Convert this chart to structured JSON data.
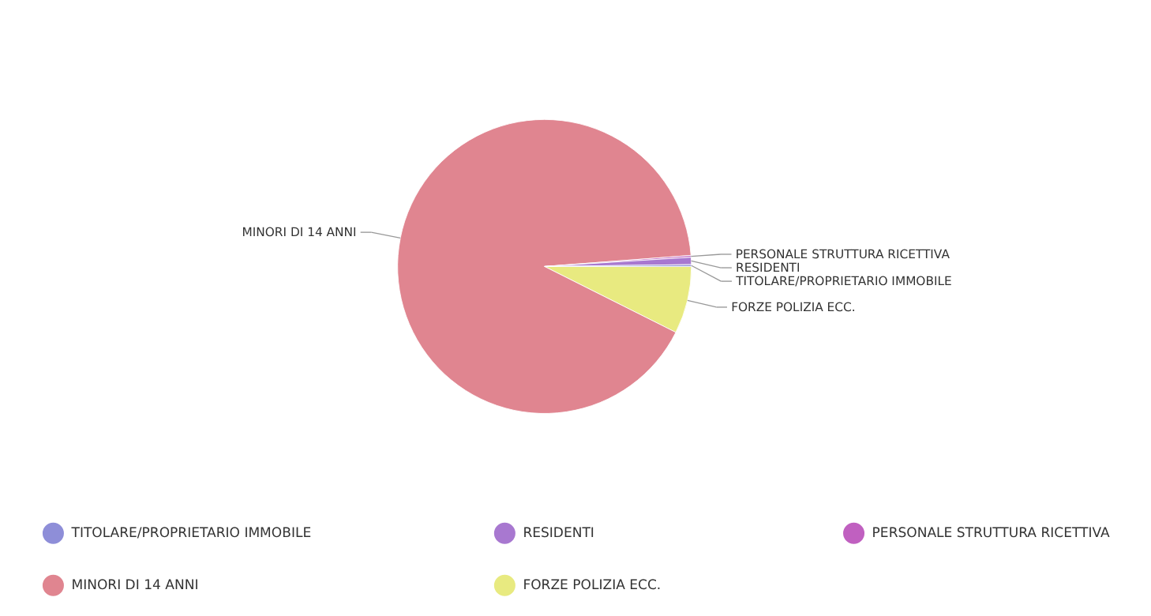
{
  "chart_data": {
    "type": "pie",
    "categories": [
      "TITOLARE/PROPRIETARIO IMMOBILE",
      "RESIDENTI",
      "PERSONALE STRUTTURA RICETTIVA",
      "MINORI DI 14 ANNI",
      "FORZE POLIZIA ECC."
    ],
    "values": [
      0.2,
      0.8,
      0.2,
      91.4,
      7.4
    ],
    "colors": [
      "#8e8ed8",
      "#a878d0",
      "#c060c0",
      "#e08590",
      "#e8ea80"
    ],
    "legend": "bottom"
  }
}
